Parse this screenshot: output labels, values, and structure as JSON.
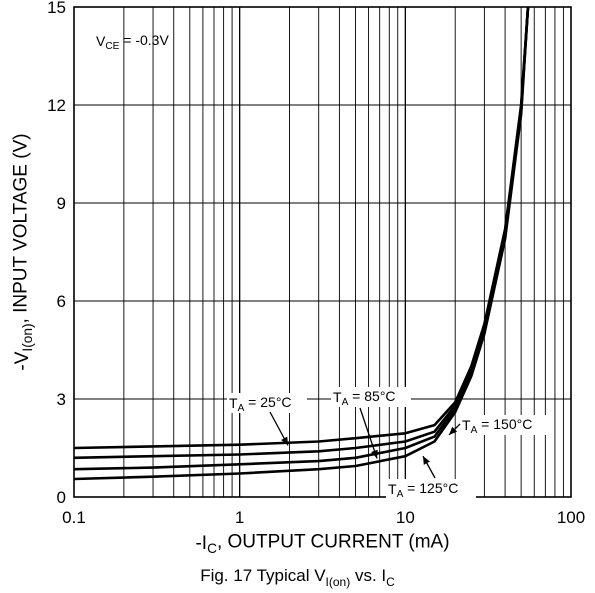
{
  "chart_data": {
    "type": "line",
    "title": "",
    "xlabel": {
      "prefix": "-I",
      "sub": "C",
      "suffix": ", OUTPUT CURRENT (mA)"
    },
    "ylabel": {
      "prefix": "-V",
      "sub": "I(on)",
      "suffix": ", INPUT VOLTAGE (V)"
    },
    "x_scale": "log",
    "xlim": [
      0.1,
      100
    ],
    "ylim": [
      0,
      15
    ],
    "x_ticks": [
      "0.1",
      "1",
      "10",
      "100"
    ],
    "y_ticks": [
      "0",
      "3",
      "6",
      "9",
      "12",
      "15"
    ],
    "grid": true,
    "condition_label": {
      "main": "V",
      "sub": "CE",
      "rest": " = -0.3V"
    },
    "series": [
      {
        "name": "TA = 25°C",
        "label": {
          "main": "T",
          "sub": "A",
          "rest": " = 25°C"
        },
        "x": [
          0.1,
          0.3,
          1,
          3,
          5,
          10,
          15,
          20,
          25,
          30,
          40,
          50,
          55
        ],
        "y": [
          1.5,
          1.55,
          1.6,
          1.7,
          1.8,
          1.95,
          2.2,
          2.9,
          4.0,
          5.3,
          8.2,
          12.0,
          15.0
        ]
      },
      {
        "name": "TA = 85°C",
        "label": {
          "main": "T",
          "sub": "A",
          "rest": " = 85°C"
        },
        "x": [
          0.1,
          0.3,
          1,
          3,
          5,
          10,
          15,
          20,
          25,
          30,
          40,
          50,
          55
        ],
        "y": [
          1.2,
          1.25,
          1.3,
          1.4,
          1.5,
          1.7,
          2.0,
          2.8,
          3.9,
          5.2,
          8.1,
          11.9,
          15.0
        ]
      },
      {
        "name": "TA = 125°C",
        "label": {
          "main": "T",
          "sub": "A",
          "rest": " = 125°C"
        },
        "x": [
          0.1,
          0.3,
          1,
          3,
          5,
          10,
          15,
          20,
          25,
          30,
          40,
          50,
          55
        ],
        "y": [
          0.85,
          0.9,
          1.0,
          1.1,
          1.2,
          1.5,
          1.85,
          2.7,
          3.8,
          5.1,
          8.0,
          11.8,
          15.0
        ]
      },
      {
        "name": "TA = 150°C",
        "label": {
          "main": "T",
          "sub": "A",
          "rest": " = 150°C"
        },
        "x": [
          0.1,
          0.3,
          1,
          3,
          5,
          10,
          15,
          20,
          25,
          30,
          40,
          50,
          55
        ],
        "y": [
          0.55,
          0.62,
          0.72,
          0.85,
          0.95,
          1.25,
          1.7,
          2.6,
          3.7,
          5.0,
          7.9,
          11.7,
          15.0
        ]
      }
    ]
  },
  "caption": {
    "prefix": "Fig. 17 Typical V",
    "sub1": "I(on)",
    "mid": " vs. I",
    "sub2": "C"
  }
}
